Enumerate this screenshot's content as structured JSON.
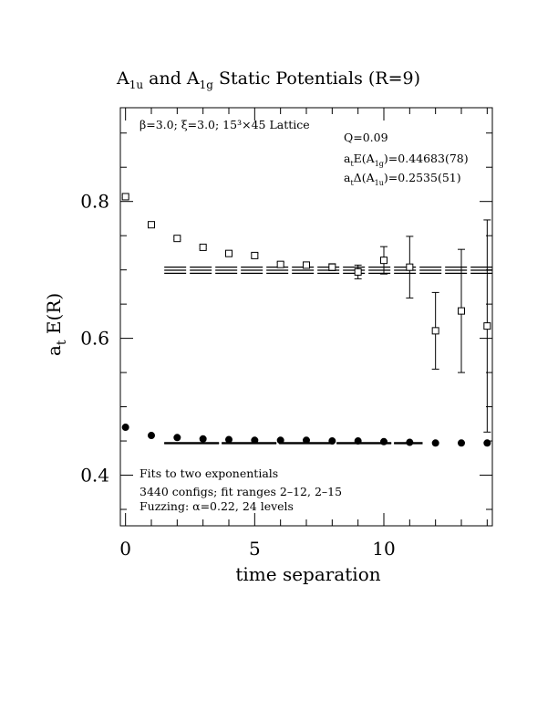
{
  "chart_data": {
    "type": "scatter",
    "title": {
      "main": "A",
      "sub1": "1u",
      "mid": " and A",
      "sub2": "1g",
      "tail": " Static Potentials (R=9)"
    },
    "xlabel": "time separation",
    "ylabel": {
      "main": "a",
      "sub": "t",
      "tail": " E(R)"
    },
    "xlim": [
      -0.2,
      14.2
    ],
    "ylim": [
      0.326,
      0.937
    ],
    "x_ticks": [
      0,
      5,
      10
    ],
    "y_ticks": [
      0.4,
      0.6,
      0.8
    ],
    "info_top_left": "β=3.0; ξ=3.0; 15³×45 Lattice",
    "info_right": {
      "q": "Q=0.09",
      "e1g": {
        "a": "a",
        "t": "t",
        "mid": "E(A",
        "sub": "1g",
        "tail": ")=0.44683(78)"
      },
      "d1u": {
        "a": "a",
        "t": "t",
        "mid": "Δ(A",
        "sub": "1u",
        "tail": ")=0.2535(51)"
      }
    },
    "notes": [
      "Fits to two exponentials",
      "3440 configs; fit ranges 2–12, 2–15",
      "Fuzzing: α=0.22, 24 levels"
    ],
    "series": [
      {
        "marker": "open-square",
        "x": [
          0,
          1,
          2,
          3,
          4,
          5,
          6,
          7,
          8,
          9,
          10,
          11,
          12,
          13,
          14
        ],
        "y": [
          0.807,
          0.766,
          0.746,
          0.733,
          0.724,
          0.721,
          0.708,
          0.707,
          0.704,
          0.697,
          0.714,
          0.704,
          0.611,
          0.64,
          0.618
        ],
        "err": [
          0.002,
          0.002,
          0.002,
          0.002,
          0.003,
          0.003,
          0.003,
          0.004,
          0.005,
          0.01,
          0.02,
          0.045,
          0.056,
          0.09,
          0.155
        ]
      },
      {
        "marker": "filled-circle",
        "x": [
          0,
          1,
          2,
          3,
          4,
          5,
          6,
          7,
          8,
          9,
          10,
          11,
          12,
          13,
          14
        ],
        "y": [
          0.47,
          0.458,
          0.455,
          0.453,
          0.452,
          0.451,
          0.451,
          0.451,
          0.45,
          0.45,
          0.449,
          0.448,
          0.447,
          0.447,
          0.447
        ]
      }
    ],
    "fit_bands": [
      {
        "center": 0.6995,
        "half_width": 0.0045,
        "x_range": [
          1.5,
          14.2
        ]
      },
      {
        "center": 0.4468,
        "half_width": 0.0008,
        "x_range": [
          1.5,
          11.5
        ]
      }
    ]
  }
}
